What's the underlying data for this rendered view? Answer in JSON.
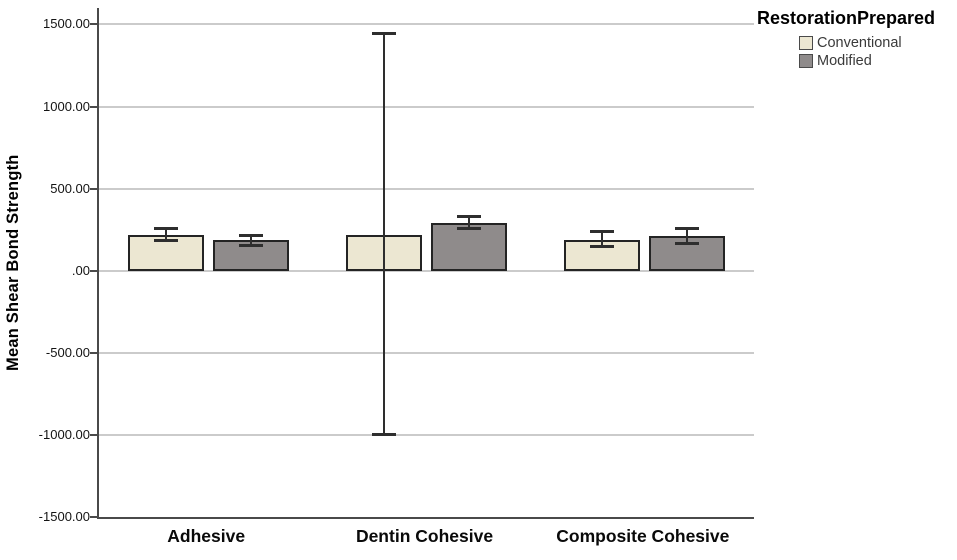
{
  "chart_data": {
    "type": "bar",
    "title": "",
    "xlabel": "",
    "ylabel": "Mean Shear Bond Strength",
    "categories": [
      "Adhesive",
      "Dentin Cohesive",
      "Composite Cohesive"
    ],
    "series": [
      {
        "name": "Conventional",
        "color": "#ece7d2",
        "values": [
          220,
          220,
          190
        ],
        "error_low": [
          180,
          -1000,
          145
        ],
        "error_high": [
          260,
          1450,
          240
        ]
      },
      {
        "name": "Modified",
        "color": "#8f8b8b",
        "values": [
          185,
          290,
          210
        ],
        "error_low": [
          150,
          255,
          165
        ],
        "error_high": [
          220,
          335,
          260
        ]
      }
    ],
    "y_ticks": [
      1500,
      1000,
      500,
      0,
      -500,
      -1000,
      -1500
    ],
    "y_tick_labels": [
      "1500.00",
      "1000.00",
      "500.00",
      ".00",
      "-500.00",
      "-1000.00",
      "-1500.00"
    ],
    "ylim": [
      -1500,
      1600
    ],
    "grid": true,
    "legend": {
      "title": "RestorationPrepared",
      "position": "top-right"
    },
    "colors": {
      "gridline": "#cbcbcb",
      "axis": "#4a4a4a",
      "bar_border": "#242424",
      "error_bar": "#2e2e2e",
      "background": "#ffffff"
    }
  }
}
